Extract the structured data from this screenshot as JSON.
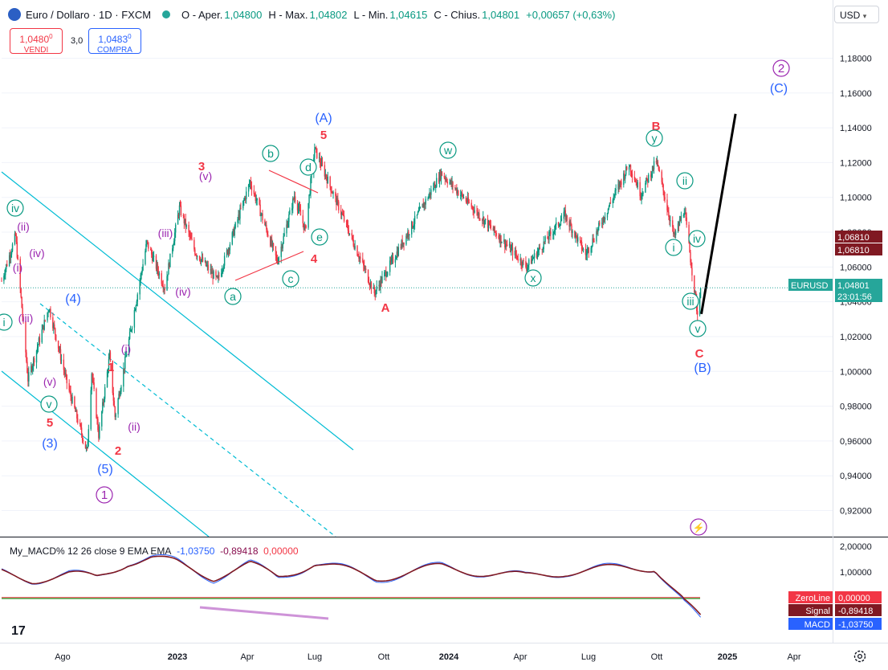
{
  "header": {
    "symbol_title": "Euro / Dollaro · 1D · FXCM",
    "open_label": "O - Aper.",
    "open_value": "1,04800",
    "high_label": "H - Max.",
    "high_value": "1,04802",
    "low_label": "L - Min.",
    "low_value": "1,04615",
    "close_label": "C - Chius.",
    "close_value": "1,04801",
    "change_value": "+0,00657 (+0,63%)"
  },
  "trade": {
    "sell_price": "1,0480",
    "sell_sup": "0",
    "sell_label": "VENDI",
    "spread": "3,0",
    "buy_price": "1,0483",
    "buy_sup": "0",
    "buy_label": "COMPRA"
  },
  "currency_select": "USD",
  "price_axis": {
    "ticks": [
      "1,18000",
      "1,16000",
      "1,14000",
      "1,12000",
      "1,10000",
      "1,08000",
      "1,06000",
      "1,04000",
      "1,02000",
      "1,00000",
      "0,98000",
      "0,96000",
      "0,94000",
      "0,92000"
    ],
    "badges": [
      {
        "text": "1,06810",
        "color": "#801922"
      },
      {
        "text": "1,06810",
        "color": "#801922"
      },
      {
        "text": "EURUSD",
        "color": "#26a69a"
      },
      {
        "text": "1,04801",
        "color": "#26a69a"
      },
      {
        "text": "23:01:56",
        "color": "#26a69a"
      }
    ]
  },
  "time_axis": {
    "labels": [
      "Ago",
      "2023",
      "Apr",
      "Lug",
      "Ott",
      "2024",
      "Apr",
      "Lug",
      "Ott",
      "2025",
      "Apr"
    ]
  },
  "macd": {
    "title": "My_MACD% 12 26 close 9 EMA EMA",
    "macd_value": "-1,03750",
    "signal_value": "-0,89418",
    "zero_value": "0,00000",
    "axis_ticks": [
      "2,00000",
      "1,00000"
    ],
    "badges": [
      {
        "label": "ZeroLine",
        "value": "0,00000",
        "color": "#f23645"
      },
      {
        "label": "Signal",
        "value": "-0,89418",
        "color": "#801922"
      },
      {
        "label": "MACD",
        "value": "-1,03750",
        "color": "#2962ff"
      }
    ]
  },
  "wave_labels": [
    {
      "text": "iv",
      "style": "circle-teal"
    },
    {
      "text": "ii",
      "style": "plain-purple"
    },
    {
      "text": "i",
      "style": "plain-purple"
    },
    {
      "text": "iv",
      "style": "plain-purple"
    },
    {
      "text": "iii",
      "style": "plain-purple"
    },
    {
      "text": "i",
      "style": "circle-teal"
    },
    {
      "text": "v",
      "style": "plain-purple"
    },
    {
      "text": "v",
      "style": "circle-teal"
    },
    {
      "text": "5",
      "style": "red"
    },
    {
      "text": "(3)",
      "style": "blue"
    },
    {
      "text": "(4)",
      "style": "blue"
    },
    {
      "text": "1",
      "style": "red"
    },
    {
      "text": "i",
      "style": "plain-purple"
    },
    {
      "text": "ii",
      "style": "plain-purple"
    },
    {
      "text": "2",
      "style": "red"
    },
    {
      "text": "(5)",
      "style": "blue"
    },
    {
      "text": "1",
      "style": "circle-purple"
    },
    {
      "text": "iii",
      "style": "plain-purple"
    },
    {
      "text": "iv",
      "style": "plain-purple"
    },
    {
      "text": "3",
      "style": "red"
    },
    {
      "text": "v",
      "style": "plain-purple"
    },
    {
      "text": "a",
      "style": "circle-teal"
    },
    {
      "text": "b",
      "style": "circle-teal"
    },
    {
      "text": "c",
      "style": "circle-teal"
    },
    {
      "text": "d",
      "style": "circle-teal"
    },
    {
      "text": "e",
      "style": "circle-teal"
    },
    {
      "text": "4",
      "style": "red"
    },
    {
      "text": "(A)",
      "style": "blue"
    },
    {
      "text": "5",
      "style": "red"
    },
    {
      "text": "A",
      "style": "red"
    },
    {
      "text": "w",
      "style": "circle-teal"
    },
    {
      "text": "x",
      "style": "circle-teal"
    },
    {
      "text": "B",
      "style": "red"
    },
    {
      "text": "y",
      "style": "circle-teal"
    },
    {
      "text": "ii",
      "style": "circle-teal"
    },
    {
      "text": "i",
      "style": "circle-teal"
    },
    {
      "text": "iv",
      "style": "circle-teal"
    },
    {
      "text": "iii",
      "style": "circle-teal"
    },
    {
      "text": "v",
      "style": "circle-teal"
    },
    {
      "text": "C",
      "style": "red"
    },
    {
      "text": "(B)",
      "style": "blue"
    },
    {
      "text": "2",
      "style": "circle-purple"
    },
    {
      "text": "(C)",
      "style": "blue"
    }
  ],
  "colors": {
    "up": "#089981",
    "down": "#f23645",
    "channel": "#00bcd4",
    "projection": "#000000",
    "macd": "#2962ff",
    "signal": "#801922",
    "zeroline": "#f23645",
    "midline": "#4caf50"
  },
  "chart_data": {
    "type": "candlestick",
    "symbol": "EURUSD",
    "timeframe": "1D",
    "ylim": [
      0.905,
      1.195
    ],
    "x_range": [
      "2022-06-10",
      "2025-05-15"
    ],
    "last_close": 1.04801,
    "key_points": [
      {
        "date": "2022-06-10",
        "price": 1.052
      },
      {
        "date": "2022-06-28",
        "price": 1.078
      },
      {
        "date": "2022-07-14",
        "price": 0.9955
      },
      {
        "date": "2022-08-10",
        "price": 1.037
      },
      {
        "date": "2022-09-02",
        "price": 0.9935
      },
      {
        "date": "2022-09-28",
        "price": 0.9535
      },
      {
        "date": "2022-10-04",
        "price": 0.9995
      },
      {
        "date": "2022-10-13",
        "price": 0.9635
      },
      {
        "date": "2022-10-27",
        "price": 1.009
      },
      {
        "date": "2022-11-03",
        "price": 0.974
      },
      {
        "date": "2022-12-14",
        "price": 1.074
      },
      {
        "date": "2023-01-06",
        "price": 1.048
      },
      {
        "date": "2023-01-25",
        "price": 1.094
      },
      {
        "date": "2023-02-14",
        "price": 1.069
      },
      {
        "date": "2023-03-15",
        "price": 1.052
      },
      {
        "date": "2023-04-26",
        "price": 1.109
      },
      {
        "date": "2023-05-31",
        "price": 1.063
      },
      {
        "date": "2023-06-22",
        "price": 1.101
      },
      {
        "date": "2023-07-06",
        "price": 1.081
      },
      {
        "date": "2023-07-18",
        "price": 1.128
      },
      {
        "date": "2023-10-03",
        "price": 1.045
      },
      {
        "date": "2023-12-28",
        "price": 1.114
      },
      {
        "date": "2024-04-16",
        "price": 1.06
      },
      {
        "date": "2024-06-04",
        "price": 1.09
      },
      {
        "date": "2024-07-01",
        "price": 1.067
      },
      {
        "date": "2024-08-26",
        "price": 1.119
      },
      {
        "date": "2024-09-10",
        "price": 1.102
      },
      {
        "date": "2024-09-30",
        "price": 1.121
      },
      {
        "date": "2024-10-23",
        "price": 1.077
      },
      {
        "date": "2024-11-05",
        "price": 1.093
      },
      {
        "date": "2024-11-22",
        "price": 1.033
      },
      {
        "date": "2024-11-26",
        "price": 1.0485
      }
    ],
    "projection": [
      {
        "date": "2024-11-27",
        "price": 1.033
      },
      {
        "date": "2025-01-10",
        "price": 1.148
      }
    ],
    "macd_key_points": [
      {
        "date": "2022-06-10",
        "macd": 0.95,
        "signal": 0.95
      },
      {
        "date": "2022-07-20",
        "macd": 0.73,
        "signal": 0.72
      },
      {
        "date": "2022-09-05",
        "macd": 0.9,
        "signal": 0.88
      },
      {
        "date": "2022-10-10",
        "macd": 0.75,
        "signal": 0.78
      },
      {
        "date": "2022-11-20",
        "macd": 1.45,
        "signal": 1.4
      },
      {
        "date": "2022-12-20",
        "macd": 1.55,
        "signal": 1.52
      },
      {
        "date": "2023-01-20",
        "macd": 1.38,
        "signal": 1.35
      },
      {
        "date": "2023-03-10",
        "macd": 0.78,
        "signal": 0.82
      },
      {
        "date": "2023-04-26",
        "macd": 1.28,
        "signal": 1.25
      },
      {
        "date": "2023-06-01",
        "macd": 0.78,
        "signal": 0.82
      },
      {
        "date": "2023-07-18",
        "macd": 1.38,
        "signal": 1.35
      },
      {
        "date": "2023-10-05",
        "macd": 0.75,
        "signal": 0.78
      },
      {
        "date": "2023-12-28",
        "macd": 1.2,
        "signal": 1.18
      },
      {
        "date": "2024-04-15",
        "macd": 0.79,
        "signal": 0.8
      },
      {
        "date": "2024-06-05",
        "macd": 1.03,
        "signal": 1.02
      },
      {
        "date": "2024-09-28",
        "macd": 1.22,
        "signal": 1.2
      },
      {
        "date": "2024-11-26",
        "macd": -1.0375,
        "signal": -0.89418
      }
    ]
  }
}
